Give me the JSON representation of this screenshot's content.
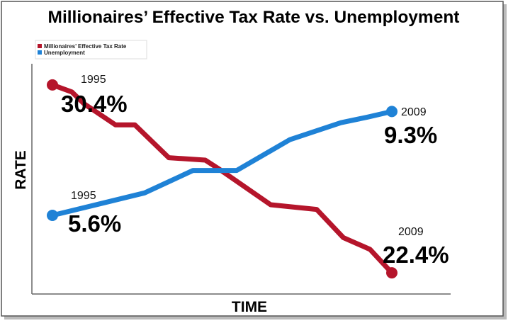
{
  "chart_data": {
    "type": "line",
    "title": "Millionaires’ Effective Tax Rate vs. Unemployment",
    "xlabel": "TIME",
    "ylabel": "RATE",
    "xlim": [
      1995,
      2009
    ],
    "grid": false,
    "legend": {
      "placement": "top-left",
      "entries": [
        "Millionaires’ Effective Tax Rate",
        "Unemployment"
      ]
    },
    "series": [
      {
        "name": "Millionaires’ Effective Tax Rate",
        "color": "#b5152b",
        "ylim": [
          21.5,
          31.3
        ],
        "x": [
          1995,
          1995.8,
          1996.3,
          1997.6,
          1998.4,
          1999.8,
          2001.3,
          2001.9,
          2004.0,
          2005.9,
          2007.0,
          2008.1,
          2009
        ],
        "values": [
          30.4,
          30.1,
          29.6,
          28.7,
          28.7,
          27.3,
          27.2,
          26.8,
          25.3,
          25.1,
          23.9,
          23.4,
          22.4
        ]
      },
      {
        "name": "Unemployment",
        "color": "#1f82d6",
        "ylim": [
          2.8,
          11.0
        ],
        "x": [
          1995,
          1996.9,
          1998.8,
          2000.8,
          2002.6,
          2004.8,
          2006.9,
          2008.0,
          2009
        ],
        "values": [
          5.6,
          6.0,
          6.4,
          7.2,
          7.2,
          8.3,
          8.9,
          9.1,
          9.3
        ]
      }
    ],
    "annotations": {
      "tax_start": {
        "year": "1995",
        "value": "30.4%"
      },
      "tax_end": {
        "year": "2009",
        "value": "22.4%"
      },
      "unemp_start": {
        "year": "1995",
        "value": "5.6%"
      },
      "unemp_end": {
        "year": "2009",
        "value": "9.3%"
      }
    }
  }
}
